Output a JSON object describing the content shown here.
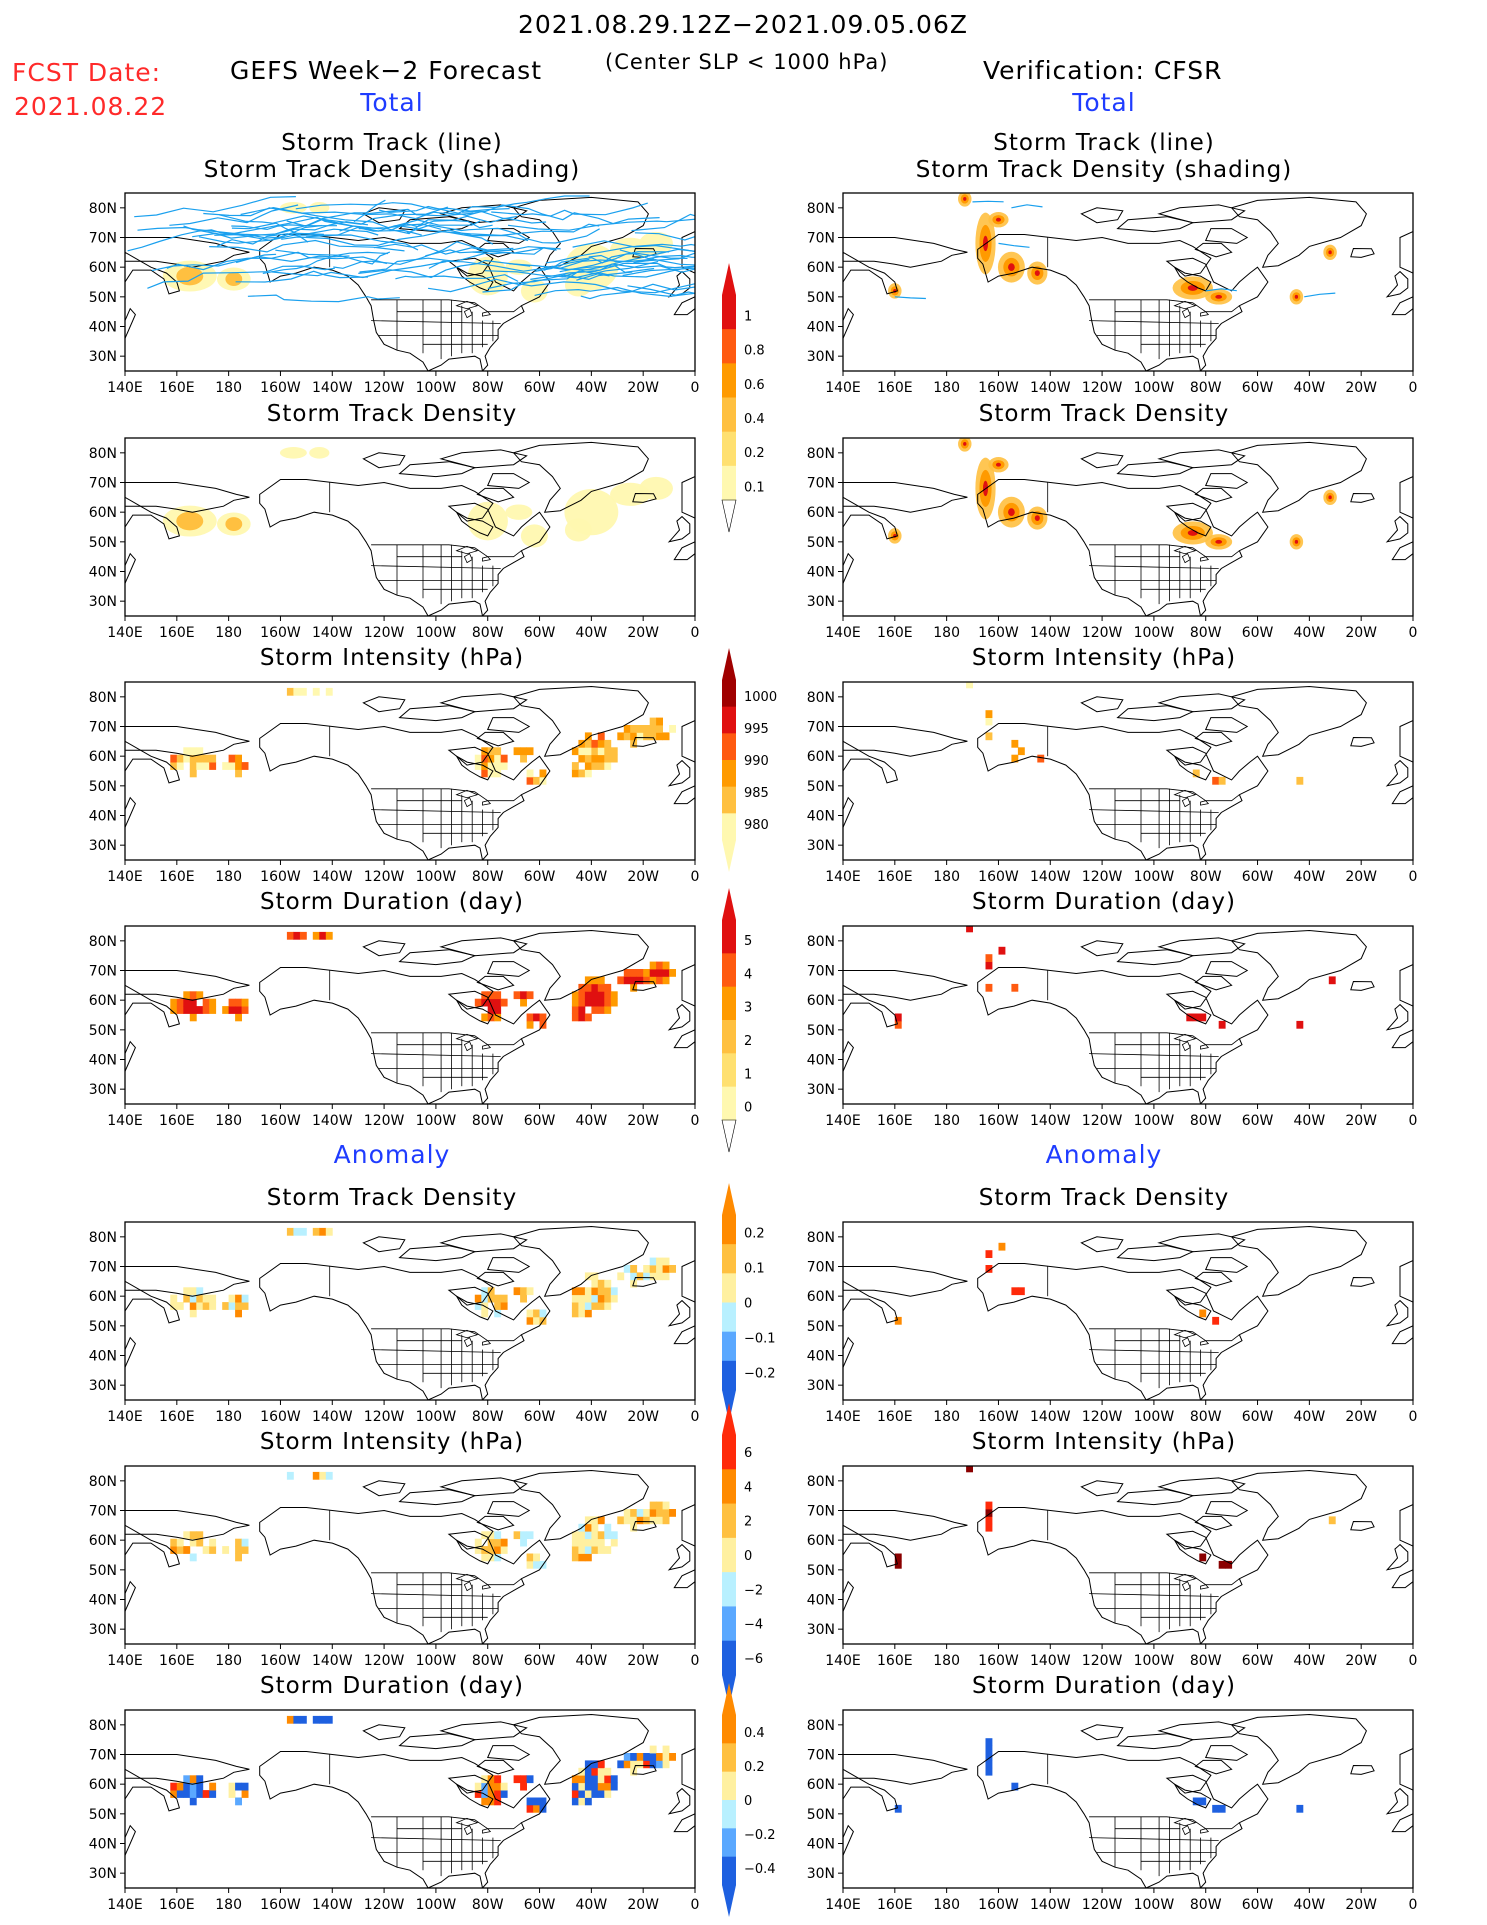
{
  "header": {
    "date_range": "2021.08.29.12Z−2021.09.05.06Z",
    "fcst_label": "FCST Date:",
    "fcst_date": "2021.08.22",
    "left_title": "GEFS Week−2 Forecast",
    "slp_note": "(Center SLP < 1000 hPa)",
    "right_title": "Verification: CFSR",
    "total_left": "Total",
    "total_right": "Total",
    "anomaly_left": "Anomaly",
    "anomaly_right": "Anomaly"
  },
  "map_axes": {
    "lon_labels": [
      "140E",
      "160E",
      "180",
      "160W",
      "140W",
      "120W",
      "100W",
      "80W",
      "60W",
      "40W",
      "20W",
      "0"
    ],
    "lat_labels": [
      "80N",
      "70N",
      "60N",
      "50N",
      "40N",
      "30N"
    ]
  },
  "colors": {
    "track_line": "#1aa0ee",
    "land_outline": "#000000",
    "density_scale": [
      "#fff8b0",
      "#ffe070",
      "#ffc040",
      "#ff9a00",
      "#ff5a10",
      "#e01010",
      "#a00000"
    ],
    "anomaly_scale": [
      "#1e60e0",
      "#5aa8ff",
      "#b8f0ff",
      "#fff0a0",
      "#ffc040",
      "#ff8a00",
      "#ff2a0a"
    ]
  },
  "colorbars": [
    {
      "id": "density_total",
      "ticks": [
        "1",
        "0.8",
        "0.6",
        "0.4",
        "0.2",
        "0.1"
      ]
    },
    {
      "id": "intensity_total",
      "ticks": [
        "1000",
        "995",
        "990",
        "985",
        "980"
      ]
    },
    {
      "id": "duration_total",
      "ticks": [
        "5",
        "4",
        "3",
        "2",
        "1",
        "0"
      ]
    },
    {
      "id": "density_anom",
      "ticks": [
        "0.2",
        "0.1",
        "0",
        "−0.1",
        "−0.2"
      ]
    },
    {
      "id": "intensity_anom",
      "ticks": [
        "6",
        "4",
        "2",
        "0",
        "−2",
        "−4",
        "−6"
      ]
    },
    {
      "id": "duration_anom",
      "ticks": [
        "0.4",
        "0.2",
        "0",
        "−0.2",
        "−0.4"
      ]
    }
  ],
  "chart_data": [
    {
      "id": "L1",
      "type": "heatmap",
      "title_line1": "Storm Track (line)",
      "title_line2": "Storm Track Density (shading)",
      "variant": "tracks_density_fcst"
    },
    {
      "id": "R1",
      "type": "heatmap",
      "title_line1": "Storm Track (line)",
      "title_line2": "Storm Track Density (shading)",
      "variant": "tracks_density_obs"
    },
    {
      "id": "L2",
      "type": "heatmap",
      "title": "Storm Track Density",
      "variant": "density_fcst"
    },
    {
      "id": "R2",
      "type": "heatmap",
      "title": "Storm Track Density",
      "variant": "density_obs"
    },
    {
      "id": "L3",
      "type": "heatmap",
      "title": "Storm Intensity (hPa)",
      "variant": "intensity_fcst"
    },
    {
      "id": "R3",
      "type": "heatmap",
      "title": "Storm Intensity (hPa)",
      "variant": "intensity_obs"
    },
    {
      "id": "L4",
      "type": "heatmap",
      "title": "Storm Duration (day)",
      "variant": "duration_fcst"
    },
    {
      "id": "R4",
      "type": "heatmap",
      "title": "Storm Duration (day)",
      "variant": "duration_obs"
    },
    {
      "id": "L5",
      "type": "heatmap",
      "title": "Storm Track Density",
      "variant": "density_anom_fcst"
    },
    {
      "id": "R5",
      "type": "heatmap",
      "title": "Storm Track Density",
      "variant": "density_anom_obs"
    },
    {
      "id": "L6",
      "type": "heatmap",
      "title": "Storm Intensity (hPa)",
      "variant": "intensity_anom_fcst"
    },
    {
      "id": "R6",
      "type": "heatmap",
      "title": "Storm Intensity (hPa)",
      "variant": "intensity_anom_obs"
    },
    {
      "id": "L7",
      "type": "heatmap",
      "title": "Storm Duration (day)",
      "variant": "duration_anom_fcst"
    },
    {
      "id": "R7",
      "type": "heatmap",
      "title": "Storm Duration (day)",
      "variant": "duration_anom_obs"
    }
  ]
}
